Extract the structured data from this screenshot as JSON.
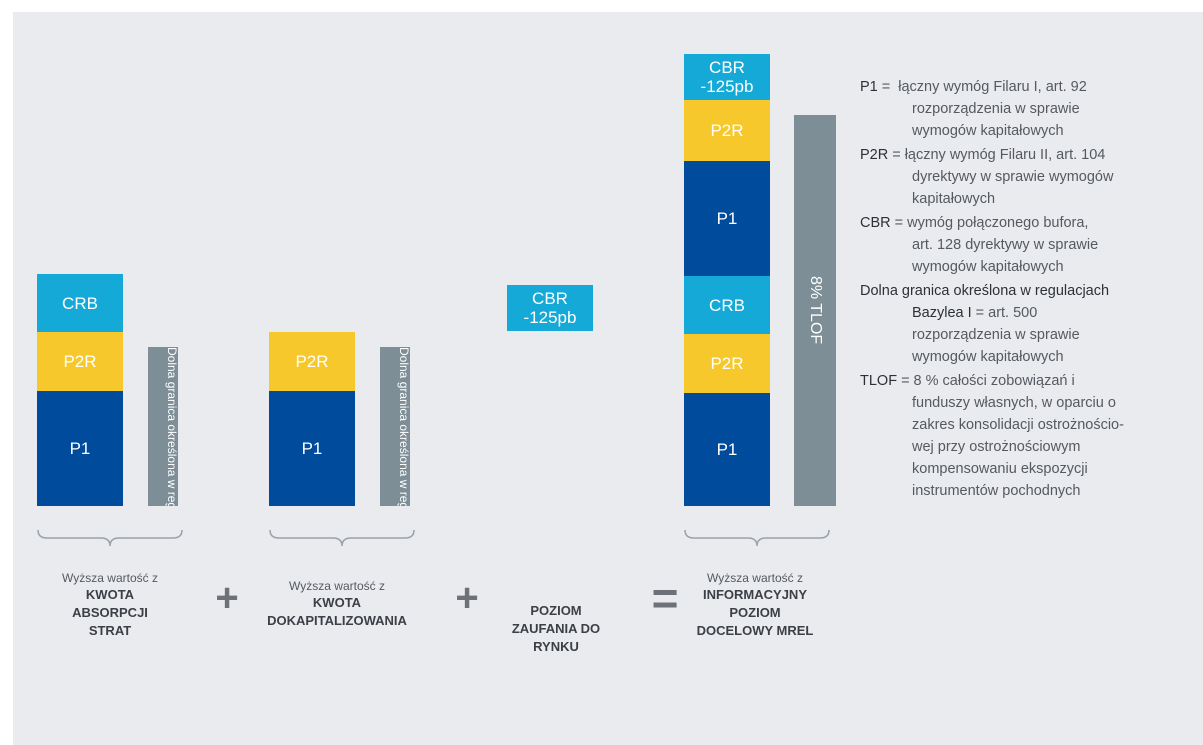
{
  "colors": {
    "background": "#e9ebef",
    "p1": "#004b9b",
    "p2r": "#f6c82b",
    "crb": "#15a9d8",
    "gray_bar": "#7d8e96",
    "text": "#555a60"
  },
  "col1": {
    "crb": "CRB",
    "p2r": "P2R",
    "p1": "P1",
    "basel_label": "Dolna granica określona w regulacjach Bazylea I",
    "caption_top": "Wyższa wartość z",
    "caption_title_1": "KWOTA",
    "caption_title_2": "ABSORPCJI",
    "caption_title_3": "STRAT"
  },
  "op1": "+",
  "col2": {
    "p2r": "P2R",
    "p1": "P1",
    "basel_label": "Dolna granica określona w regulacjach Bazylea I",
    "caption_top": "Wyższa wartość z",
    "caption_title_1": "KWOTA",
    "caption_title_2": "DOKAPITALIZOWANIA"
  },
  "op2": "+",
  "col3": {
    "cbr_line1": "CBR",
    "cbr_line2": "-125pb",
    "caption_title_1": "POZIOM",
    "caption_title_2": "ZAUFANIA DO",
    "caption_title_3": "RYNKU"
  },
  "op3": "=",
  "col4": {
    "cbr_line1": "CBR",
    "cbr_line2": "-125pb",
    "p2r_top": "P2R",
    "p1_top": "P1",
    "crb": "CRB",
    "p2r_bottom": "P2R",
    "p1_bottom": "P1",
    "tlof_label": "8% TLOF",
    "caption_top": "Wyższa wartość z",
    "caption_title_1": "INFORMACYJNY",
    "caption_title_2": "POZIOM",
    "caption_title_3": "DOCELOWY MREL"
  },
  "legend": [
    {
      "key": "P1",
      "lines": [
        "łączny wymóg Filaru I, art. 92",
        "rozporządzenia w sprawie",
        "wymogów kapitałowych"
      ]
    },
    {
      "key": "P2R",
      "lines": [
        "łączny wymóg Filaru II, art. 104",
        "dyrektywy w sprawie wymogów",
        "kapitałowych"
      ]
    },
    {
      "key": "CBR",
      "lines": [
        "wymóg połączonego bufora,",
        "art. 128 dyrektywy w sprawie",
        "wymogów kapitałowych"
      ]
    },
    {
      "key_line1": "Dolna granica określona w regulacjach",
      "key_line2": "Bazylea I",
      "lines": [
        "art. 500",
        "rozporządzenia w sprawie",
        "wymogów kapitałowych"
      ]
    },
    {
      "key": "TLOF",
      "lines": [
        "8 % całości zobowiązań i",
        "funduszy własnych, w oparciu o",
        "zakres konsolidacji ostrożnościo-",
        "wej przy ostrożnościowym",
        "kompensowaniu ekspozycji",
        "instrumentów pochodnych"
      ]
    }
  ],
  "legend_eq": "="
}
